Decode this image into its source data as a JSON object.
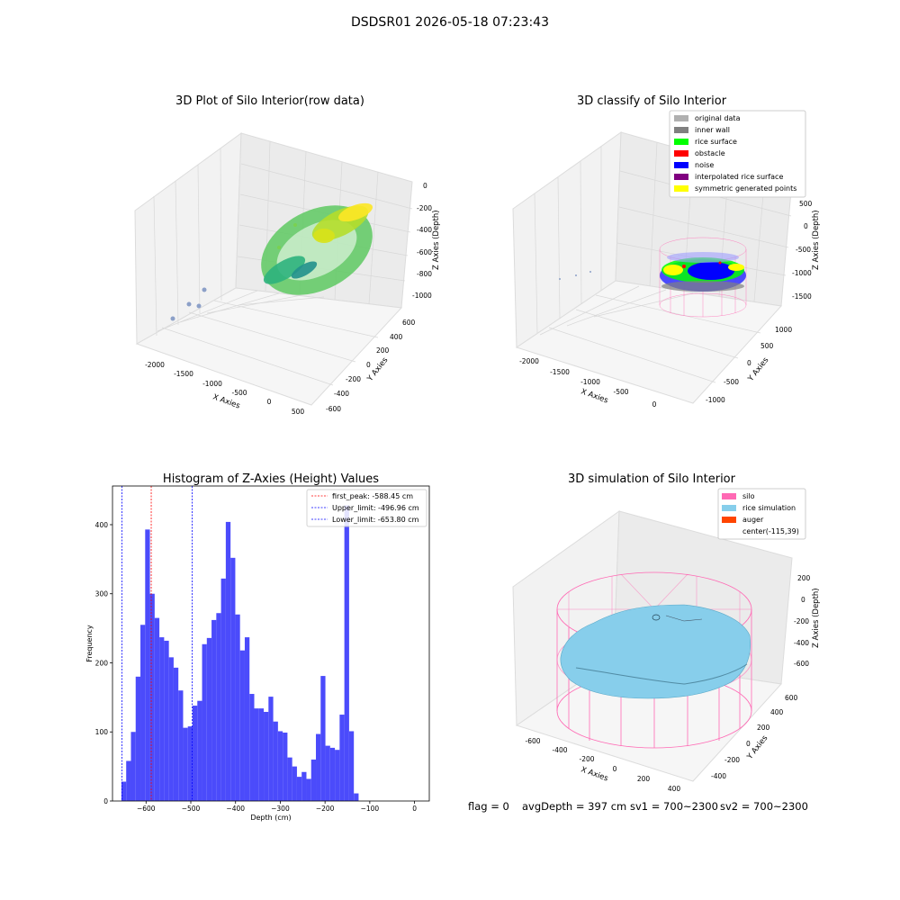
{
  "figure": {
    "suptitle": "DSDSR01 2026-05-18 07:23:43",
    "footer": {
      "flag": "flag = 0",
      "avg_depth": "avgDepth = 397 cm",
      "sv1": "sv1 = 700~2300",
      "sv2": "sv2 = 700~2300"
    }
  },
  "colors": {
    "histogram_bar": "#4b4bfb",
    "first_peak_line": "#ff0000",
    "limit_line": "#0000ff",
    "pane": "#f2f2f2",
    "silo_wireframe": "#ff69b4",
    "rice_simulation": "#87ceeb",
    "auger": "#ff4500",
    "inner_wall": "#808080",
    "rice_surface": "#00ff00",
    "obstacle": "#ff0000",
    "noise": "#0000ff",
    "interpolated": "#800080",
    "symmetric": "#ffff00",
    "original": "#b0b0b0"
  },
  "chart_data": [
    {
      "type": "scatter",
      "projection": "3d",
      "title": "3D Plot of Silo Interior(row data)",
      "xlabel": "X Axies",
      "ylabel": "Y Axies",
      "zlabel": "Z Axies (Depth)",
      "x_ticks": [
        "-2000",
        "-1500",
        "-1000",
        "-500",
        "0",
        "500"
      ],
      "y_ticks": [
        "-600",
        "-400",
        "-200",
        "0",
        "200",
        "400",
        "600"
      ],
      "z_ticks": [
        "0",
        "-200",
        "-400",
        "-600",
        "-800",
        "-1000"
      ],
      "colormap": "viridis"
    },
    {
      "type": "scatter",
      "projection": "3d",
      "title": "3D classify of Silo Interior",
      "xlabel": "X Axies",
      "ylabel": "Y Axies",
      "zlabel": "Z Axies (Depth)",
      "x_ticks": [
        "-2000",
        "-1500",
        "-1000",
        "-500",
        "0"
      ],
      "y_ticks": [
        "-1000",
        "-500",
        "0",
        "500",
        "1000"
      ],
      "z_ticks": [
        "500",
        "0",
        "-500",
        "-1000",
        "-1500"
      ],
      "legend": [
        {
          "label": "original data",
          "color": "#b0b0b0"
        },
        {
          "label": "inner wall",
          "color": "#808080"
        },
        {
          "label": "rice surface",
          "color": "#00ff00"
        },
        {
          "label": "obstacle",
          "color": "#ff0000"
        },
        {
          "label": "noise",
          "color": "#0000ff"
        },
        {
          "label": "interpolated rice surface",
          "color": "#800080"
        },
        {
          "label": "symmetric generated points",
          "color": "#ffff00"
        }
      ],
      "legend_position": "top-right"
    },
    {
      "type": "bar",
      "title": "Histogram of Z-Axies (Height) Values",
      "xlabel": "Depth (cm)",
      "ylabel": "Frequency",
      "xlim": [
        -675,
        33
      ],
      "ylim": [
        0,
        456
      ],
      "x_ticks": [
        -600,
        -500,
        -400,
        -300,
        -200,
        -100,
        0
      ],
      "y_ticks": [
        0,
        100,
        200,
        300,
        400
      ],
      "bin_start": -655,
      "bin_width": 10.6,
      "values": [
        28,
        58,
        100,
        180,
        255,
        393,
        300,
        265,
        237,
        232,
        208,
        193,
        160,
        106,
        108,
        138,
        145,
        227,
        236,
        262,
        272,
        322,
        404,
        352,
        270,
        218,
        237,
        155,
        134,
        134,
        129,
        151,
        115,
        101,
        99,
        63,
        50,
        35,
        42,
        32,
        60,
        97,
        181,
        80,
        77,
        74,
        125,
        428,
        101,
        11
      ],
      "vlines": [
        {
          "label": "first_peak: -588.45 cm",
          "x": -588.45,
          "color": "#ff0000"
        },
        {
          "label": "Upper_limit: -496.96 cm",
          "x": -496.96,
          "color": "#0000ff"
        },
        {
          "label": "Lower_limit: -653.80 cm",
          "x": -653.8,
          "color": "#0000ff"
        }
      ],
      "legend_position": "top-right"
    },
    {
      "type": "surface",
      "projection": "3d",
      "title": "3D simulation of Silo Interior",
      "xlabel": "X Axies",
      "ylabel": "Y Axies",
      "zlabel": "Z Axies (Depth)",
      "x_ticks": [
        "-600",
        "-400",
        "-200",
        "0",
        "200",
        "400"
      ],
      "y_ticks": [
        "-400",
        "-200",
        "0",
        "200",
        "400",
        "600"
      ],
      "z_ticks": [
        "200",
        "0",
        "-200",
        "-400",
        "-600"
      ],
      "legend": [
        {
          "label": "silo",
          "color": "#ff69b4"
        },
        {
          "label": "rice simulation",
          "color": "#87ceeb"
        },
        {
          "label": "auger",
          "color": "#ff4500"
        },
        {
          "label": "center(-115,39)",
          "color": ""
        }
      ],
      "legend_position": "top-right"
    }
  ]
}
